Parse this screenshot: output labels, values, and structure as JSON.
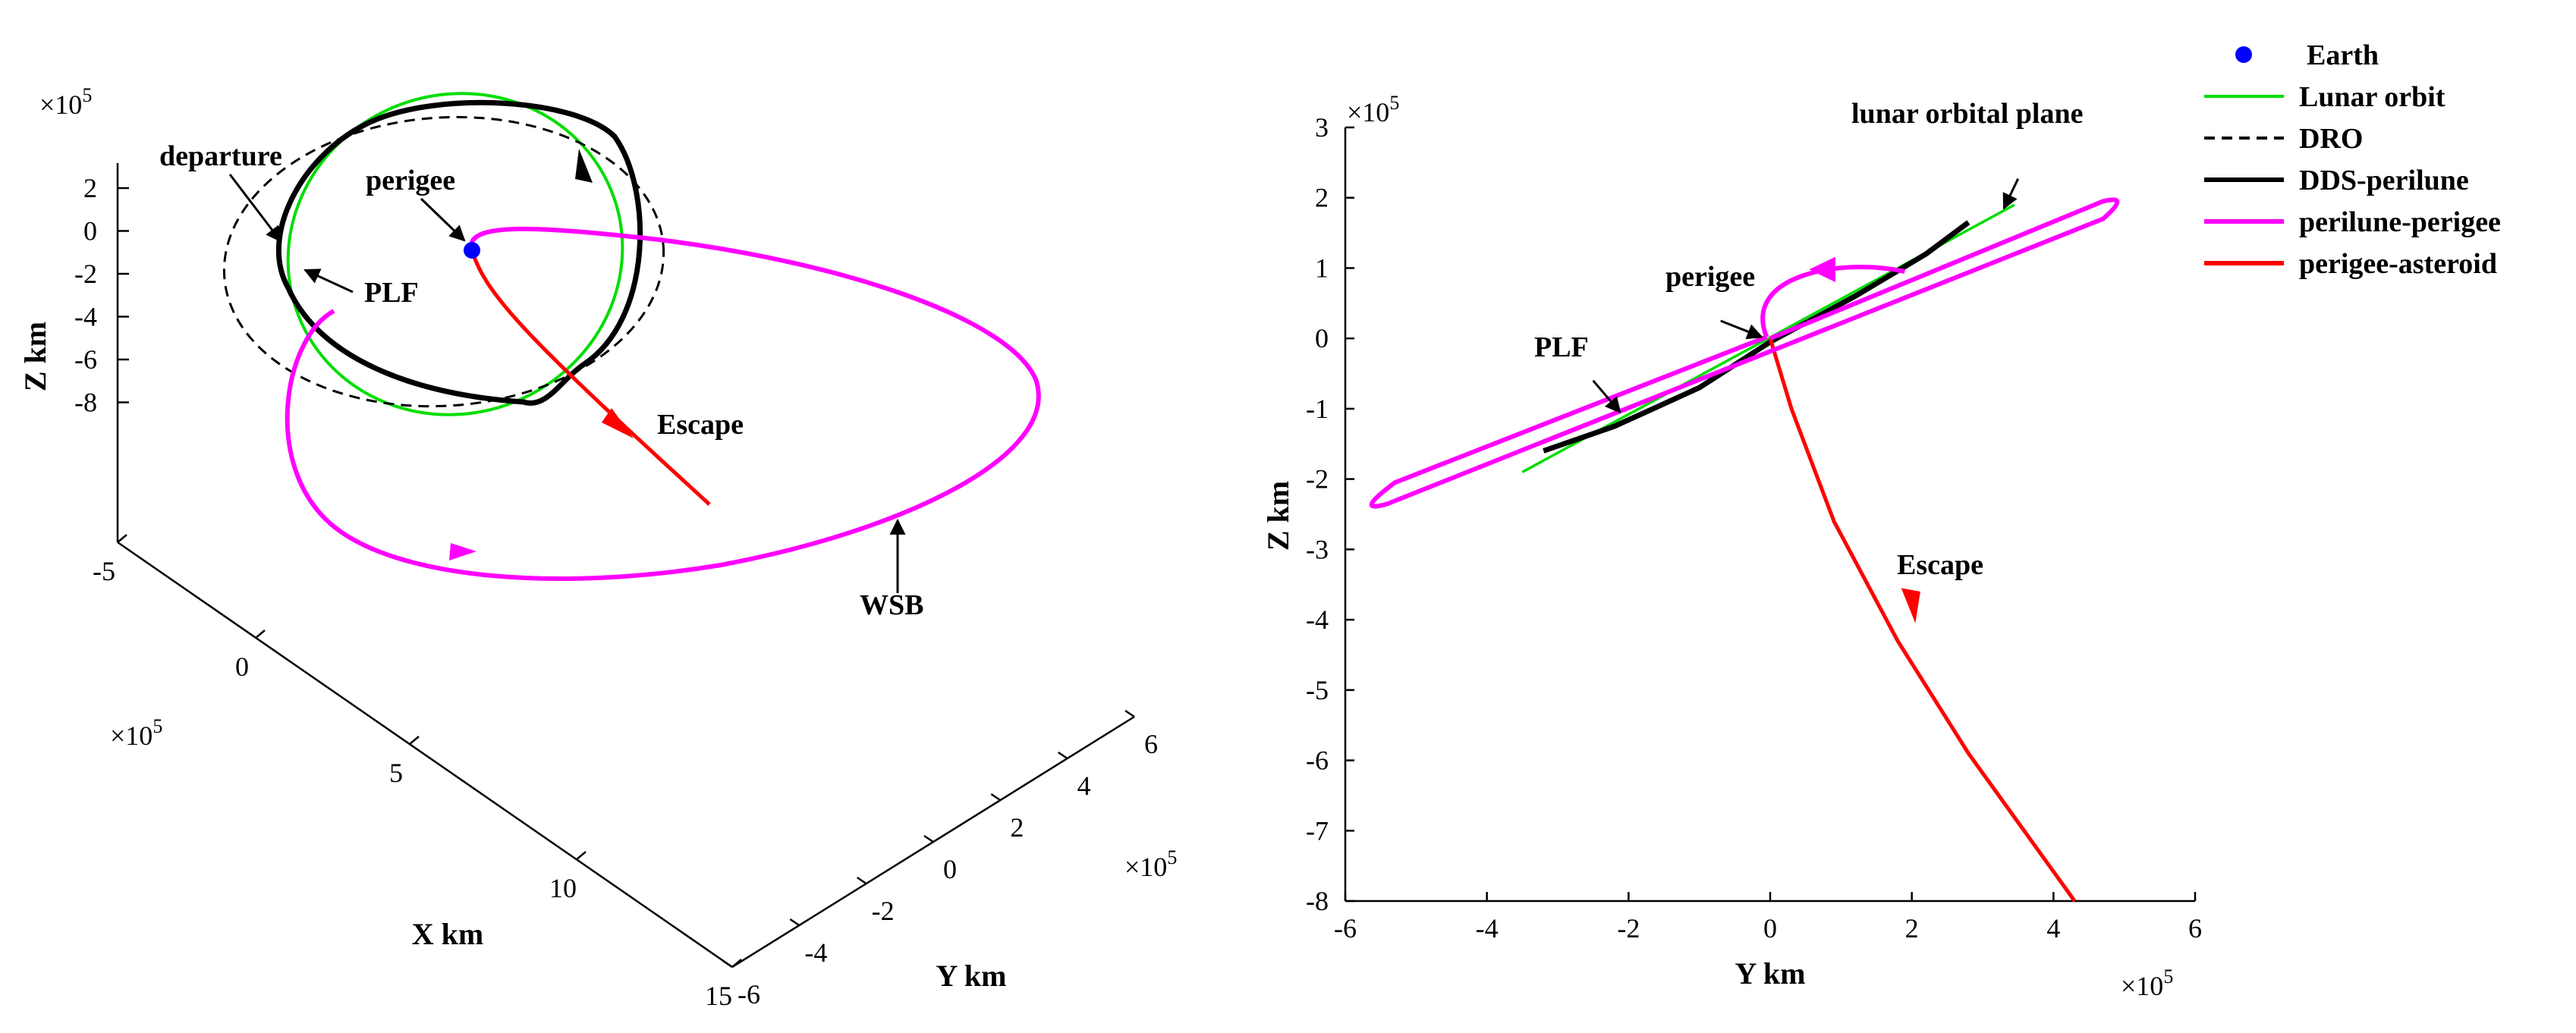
{
  "colors": {
    "earth": "#0000ff",
    "lunar_orbit": "#00dd00",
    "dro": "#000000",
    "dds_perilune": "#000000",
    "perilune_perigee": "#ff00ff",
    "perigee_asteroid": "#ff0000"
  },
  "legend": [
    {
      "label": "Earth",
      "style": "marker"
    },
    {
      "label": "Lunar orbit",
      "style": "solid"
    },
    {
      "label": "DRO",
      "style": "dashed"
    },
    {
      "label": "DDS-perilune",
      "style": "solid-thick"
    },
    {
      "label": "perilune-perigee",
      "style": "solid-thick"
    },
    {
      "label": "perigee-asteroid",
      "style": "solid-thick"
    }
  ],
  "chart_data": [
    {
      "type": "line",
      "projection": "3d",
      "xlabel": "X km",
      "ylabel": "Y km",
      "zlabel": "Z km",
      "x_ticks": [
        "-5",
        "0",
        "5",
        "10",
        "15"
      ],
      "y_ticks": [
        "-6",
        "-4",
        "-2",
        "0",
        "2",
        "4",
        "6"
      ],
      "z_ticks": [
        "2",
        "0",
        "-2",
        "-4",
        "-6",
        "-8"
      ],
      "x_exponent": "×10",
      "y_exponent": "×10",
      "z_exponent": "×10",
      "exponent_power": "5",
      "xlim": [
        -5,
        15
      ],
      "ylim": [
        -6,
        6
      ],
      "zlim": [
        -8,
        2
      ],
      "annotations": [
        "departure",
        "perigee",
        "PLF",
        "Escape",
        "WSB"
      ]
    },
    {
      "type": "line",
      "xlabel": "Y km",
      "ylabel": "Z km",
      "x_ticks": [
        "-6",
        "-4",
        "-2",
        "0",
        "2",
        "4",
        "6"
      ],
      "y_ticks": [
        "3",
        "2",
        "1",
        "0",
        "-1",
        "-2",
        "-3",
        "-4",
        "-5",
        "-6",
        "-7",
        "-8"
      ],
      "x_exponent": "×10",
      "y_exponent": "×10",
      "exponent_power": "5",
      "xlim": [
        -6,
        6
      ],
      "ylim": [
        -8,
        3
      ],
      "annotations": [
        "lunar orbital plane",
        "perigee",
        "PLF",
        "Escape"
      ],
      "series": [
        {
          "name": "Lunar orbit",
          "x": [
            -3.5,
            3.45
          ],
          "y": [
            -1.9,
            1.9
          ]
        },
        {
          "name": "DDS-perilune",
          "x": [
            -3.2,
            -2.2,
            -1.0,
            0.0,
            1.2,
            2.2,
            2.8
          ],
          "y": [
            -1.6,
            -1.25,
            -0.7,
            -0.05,
            0.6,
            1.2,
            1.65
          ]
        },
        {
          "name": "perigee-asteroid",
          "x": [
            0.0,
            0.3,
            0.9,
            1.8,
            2.8,
            4.3
          ],
          "y": [
            0.0,
            -1.0,
            -2.6,
            -4.3,
            -5.9,
            -8.0
          ]
        }
      ]
    }
  ]
}
